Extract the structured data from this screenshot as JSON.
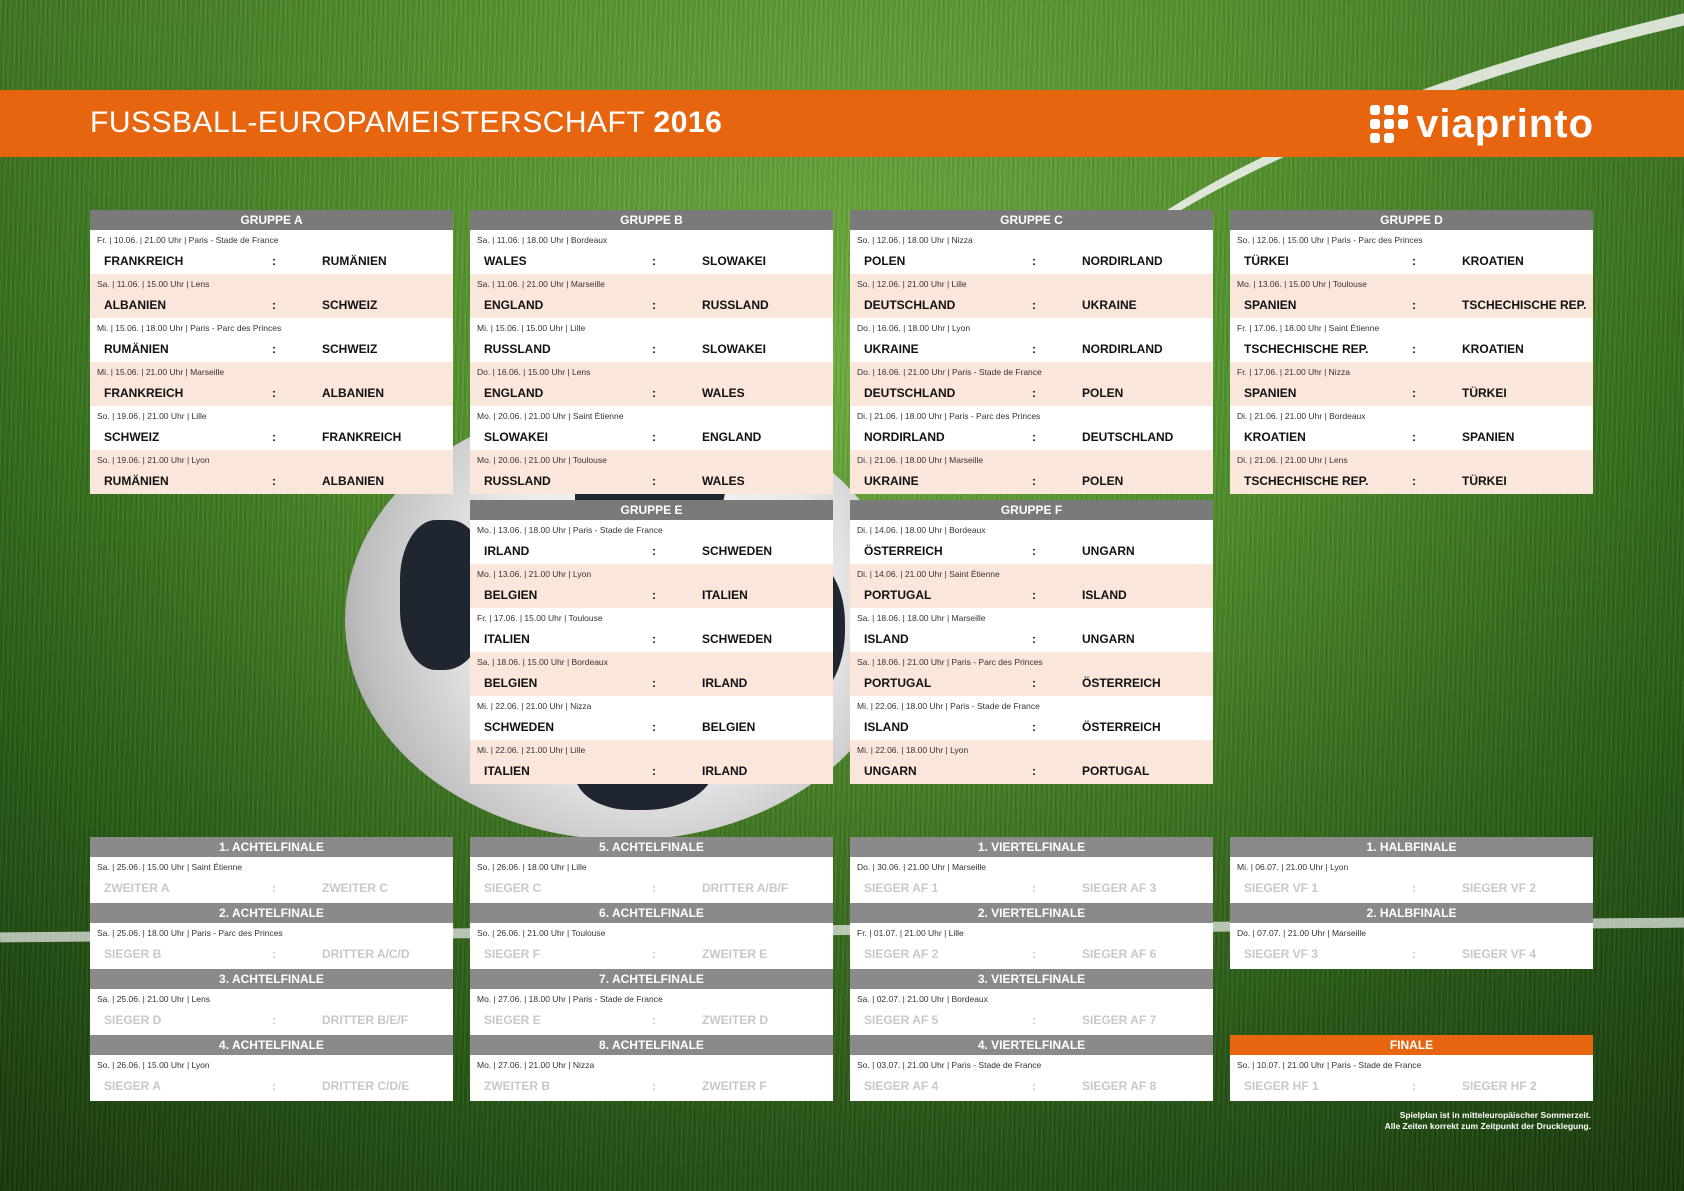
{
  "header": {
    "title_main": "FUSSBALL-EUROPAMEISTERSCHAFT",
    "title_year": "2016",
    "logo": "viaprinto"
  },
  "groups": [
    {
      "name": "GRUPPE A",
      "matches": [
        {
          "info": "Fr. | 10.06. | 21.00 Uhr | Paris - Stade de France",
          "home": "FRANKREICH",
          "away": "RUMÄNIEN"
        },
        {
          "info": "Sa. | 11.06. | 15.00 Uhr | Lens",
          "home": "ALBANIEN",
          "away": "SCHWEIZ"
        },
        {
          "info": "Mi. | 15.06. | 18.00 Uhr | Paris - Parc des Princes",
          "home": "RUMÄNIEN",
          "away": "SCHWEIZ"
        },
        {
          "info": "Mi. | 15.06. | 21.00 Uhr | Marseille",
          "home": "FRANKREICH",
          "away": "ALBANIEN"
        },
        {
          "info": "So. | 19.06. | 21.00 Uhr | Lille",
          "home": "SCHWEIZ",
          "away": "FRANKREICH"
        },
        {
          "info": "So. | 19.06. | 21.00 Uhr | Lyon",
          "home": "RUMÄNIEN",
          "away": "ALBANIEN"
        }
      ]
    },
    {
      "name": "GRUPPE B",
      "matches": [
        {
          "info": "Sa. | 11.06. | 18.00 Uhr | Bordeaux",
          "home": "WALES",
          "away": "SLOWAKEI"
        },
        {
          "info": "Sa. | 11.06. | 21.00 Uhr | Marseille",
          "home": "ENGLAND",
          "away": "RUSSLAND"
        },
        {
          "info": "Mi. | 15.06. | 15.00 Uhr | Lille",
          "home": "RUSSLAND",
          "away": "SLOWAKEI"
        },
        {
          "info": "Do. | 16.06. | 15.00 Uhr | Lens",
          "home": "ENGLAND",
          "away": "WALES"
        },
        {
          "info": "Mo. | 20.06. | 21.00 Uhr | Saint Étienne",
          "home": "SLOWAKEI",
          "away": "ENGLAND"
        },
        {
          "info": "Mo. | 20.06. | 21.00 Uhr | Toulouse",
          "home": "RUSSLAND",
          "away": "WALES"
        }
      ]
    },
    {
      "name": "GRUPPE C",
      "matches": [
        {
          "info": "So. | 12.06. | 18.00 Uhr | Nizza",
          "home": "POLEN",
          "away": "NORDIRLAND"
        },
        {
          "info": "So. | 12.06. | 21.00 Uhr | Lille",
          "home": "DEUTSCHLAND",
          "away": "UKRAINE"
        },
        {
          "info": "Do. | 16.06. | 18.00 Uhr | Lyon",
          "home": "UKRAINE",
          "away": "NORDIRLAND"
        },
        {
          "info": "Do. | 16.06. | 21.00 Uhr | Paris - Stade de France",
          "home": "DEUTSCHLAND",
          "away": "POLEN"
        },
        {
          "info": "Di. | 21.06. | 18.00 Uhr | Paris - Parc des Princes",
          "home": "NORDIRLAND",
          "away": "DEUTSCHLAND"
        },
        {
          "info": "Di. | 21.06. | 18.00 Uhr | Marseille",
          "home": "UKRAINE",
          "away": "POLEN"
        }
      ]
    },
    {
      "name": "GRUPPE D",
      "matches": [
        {
          "info": "So. | 12.06. | 15.00 Uhr | Paris - Parc des Princes",
          "home": "TÜRKEI",
          "away": "KROATIEN"
        },
        {
          "info": "Mo. | 13.06. | 15.00 Uhr | Toulouse",
          "home": "SPANIEN",
          "away": "TSCHECHISCHE REP."
        },
        {
          "info": "Fr. | 17.06. | 18.00 Uhr | Saint Étienne",
          "home": "TSCHECHISCHE REP.",
          "away": "KROATIEN"
        },
        {
          "info": "Fr. | 17.06. | 21.00 Uhr | Nizza",
          "home": "SPANIEN",
          "away": "TÜRKEI"
        },
        {
          "info": "Di. | 21.06. | 21.00 Uhr | Bordeaux",
          "home": "KROATIEN",
          "away": "SPANIEN"
        },
        {
          "info": "Di. | 21.06. | 21.00 Uhr | Lens",
          "home": "TSCHECHISCHE REP.",
          "away": "TÜRKEI"
        }
      ]
    },
    {
      "name": "GRUPPE E",
      "matches": [
        {
          "info": "Mo. | 13.06. | 18.00 Uhr | Paris - Stade de France",
          "home": "IRLAND",
          "away": "SCHWEDEN"
        },
        {
          "info": "Mo. | 13.06. | 21.00 Uhr | Lyon",
          "home": "BELGIEN",
          "away": "ITALIEN"
        },
        {
          "info": "Fr. | 17.06. | 15.00 Uhr | Toulouse",
          "home": "ITALIEN",
          "away": "SCHWEDEN"
        },
        {
          "info": "Sa. | 18.06. | 15.00 Uhr | Bordeaux",
          "home": "BELGIEN",
          "away": "IRLAND"
        },
        {
          "info": "Mi. | 22.06. | 21.00 Uhr | Nizza",
          "home": "SCHWEDEN",
          "away": "BELGIEN"
        },
        {
          "info": "Mi. | 22.06. | 21.00 Uhr | Lille",
          "home": "ITALIEN",
          "away": "IRLAND"
        }
      ]
    },
    {
      "name": "GRUPPE F",
      "matches": [
        {
          "info": "Di. | 14.06. | 18.00 Uhr | Bordeaux",
          "home": "ÖSTERREICH",
          "away": "UNGARN"
        },
        {
          "info": "Di. | 14.06. | 21.00 Uhr | Saint Étienne",
          "home": "PORTUGAL",
          "away": "ISLAND"
        },
        {
          "info": "Sa. | 18.06. | 18.00 Uhr | Marseille",
          "home": "ISLAND",
          "away": "UNGARN"
        },
        {
          "info": "Sa. | 18.06. | 21.00 Uhr | Paris - Parc des Princes",
          "home": "PORTUGAL",
          "away": "ÖSTERREICH"
        },
        {
          "info": "Mi. | 22.06. | 18.00 Uhr | Paris - Stade de France",
          "home": "ISLAND",
          "away": "ÖSTERREICH"
        },
        {
          "info": "Mi. | 22.06. | 18.00 Uhr | Lyon",
          "home": "UNGARN",
          "away": "PORTUGAL"
        }
      ]
    }
  ],
  "knockout_columns": [
    [
      {
        "name": "1. ACHTELFINALE",
        "info": "Sa. | 25.06. | 15.00 Uhr | Saint Étienne",
        "home": "ZWEITER A",
        "away": "ZWEITER C"
      },
      {
        "name": "2. ACHTELFINALE",
        "info": "Sa. | 25.06. | 18.00 Uhr | Paris - Parc des Princes",
        "home": "SIEGER B",
        "away": "DRITTER A/C/D"
      },
      {
        "name": "3. ACHTELFINALE",
        "info": "Sa. | 25.06. | 21.00 Uhr | Lens",
        "home": "SIEGER D",
        "away": "DRITTER B/E/F"
      },
      {
        "name": "4. ACHTELFINALE",
        "info": "So. | 26.06. | 15.00 Uhr | Lyon",
        "home": "SIEGER A",
        "away": "DRITTER C/D/E"
      }
    ],
    [
      {
        "name": "5. ACHTELFINALE",
        "info": "So. | 26.06. | 18.00 Uhr | Lille",
        "home": "SIEGER C",
        "away": "DRITTER A/B/F"
      },
      {
        "name": "6. ACHTELFINALE",
        "info": "So. | 26.06. | 21.00 Uhr | Toulouse",
        "home": "SIEGER F",
        "away": "ZWEITER E"
      },
      {
        "name": "7. ACHTELFINALE",
        "info": "Mo. | 27.06. | 18.00 Uhr | Paris - Stade de France",
        "home": "SIEGER E",
        "away": "ZWEITER D"
      },
      {
        "name": "8. ACHTELFINALE",
        "info": "Mo. | 27.06. | 21.00 Uhr | Nizza",
        "home": "ZWEITER B",
        "away": "ZWEITER F"
      }
    ],
    [
      {
        "name": "1. VIERTELFINALE",
        "info": "Do. | 30.06. | 21.00 Uhr | Marseille",
        "home": "SIEGER AF 1",
        "away": "SIEGER AF 3"
      },
      {
        "name": "2. VIERTELFINALE",
        "info": "Fr. | 01.07. | 21.00 Uhr | Lille",
        "home": "SIEGER AF 2",
        "away": "SIEGER AF 6"
      },
      {
        "name": "3. VIERTELFINALE",
        "info": "Sa. | 02.07. | 21.00 Uhr | Bordeaux",
        "home": "SIEGER AF 5",
        "away": "SIEGER AF 7"
      },
      {
        "name": "4. VIERTELFINALE",
        "info": "So. | 03.07. | 21.00 Uhr | Paris - Stade de France",
        "home": "SIEGER AF 4",
        "away": "SIEGER AF 8"
      }
    ],
    [
      {
        "name": "1. HALBFINALE",
        "info": "Mi. | 06.07. | 21.00 Uhr | Lyon",
        "home": "SIEGER VF 1",
        "away": "SIEGER VF 2"
      },
      {
        "name": "2. HALBFINALE",
        "info": "Do. | 07.07. | 21.00 Uhr | Marseille",
        "home": "SIEGER VF 3",
        "away": "SIEGER VF 4"
      }
    ]
  ],
  "final": {
    "name": "FINALE",
    "info": "So. | 10.07. | 21.00 Uhr | Paris - Stade de France",
    "home": "SIEGER HF 1",
    "away": "SIEGER HF 2"
  },
  "separator": ":",
  "note_line1": "Spielplan ist in mitteleuropäischer Sommerzeit.",
  "note_line2": "Alle Zeiten korrekt zum Zeitpunkt der Drucklegung.",
  "colors": {
    "accent": "#e8650f",
    "header_gray": "#7a7a7a",
    "row_alt": "#fbe6dc"
  }
}
